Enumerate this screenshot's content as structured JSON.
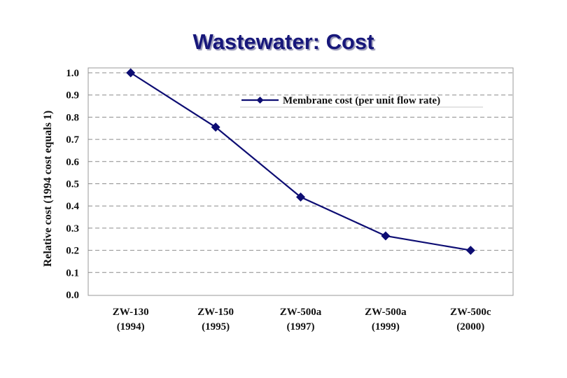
{
  "slide_title": "Wastewater: Cost",
  "colors": {
    "series": "#0d0d73",
    "grid": "#8c8c8c",
    "plot_border": "#9a9a9a",
    "title": "#17177a"
  },
  "chart_data": {
    "type": "line",
    "title": "Wastewater: Cost",
    "ylabel": "Relative cost  (1994 cost equals 1)",
    "xlabel": "",
    "categories": [
      {
        "name": "ZW-130",
        "year": "(1994)"
      },
      {
        "name": "ZW-150",
        "year": "(1995)"
      },
      {
        "name": "ZW-500a",
        "year": "(1997)"
      },
      {
        "name": "ZW-500a",
        "year": "(1999)"
      },
      {
        "name": "ZW-500c",
        "year": "(2000)"
      }
    ],
    "series": [
      {
        "name": "Membrane cost (per unit flow rate)",
        "marker": "diamond",
        "values": [
          1.0,
          0.755,
          0.44,
          0.265,
          0.2
        ]
      }
    ],
    "ylim": [
      0,
      1.0
    ],
    "yticks": [
      "0.0",
      "0.1",
      "0.2",
      "0.3",
      "0.4",
      "0.5",
      "0.6",
      "0.7",
      "0.8",
      "0.9",
      "1.0"
    ],
    "grid": "horizontal dashed",
    "legend_position": "top-right"
  }
}
